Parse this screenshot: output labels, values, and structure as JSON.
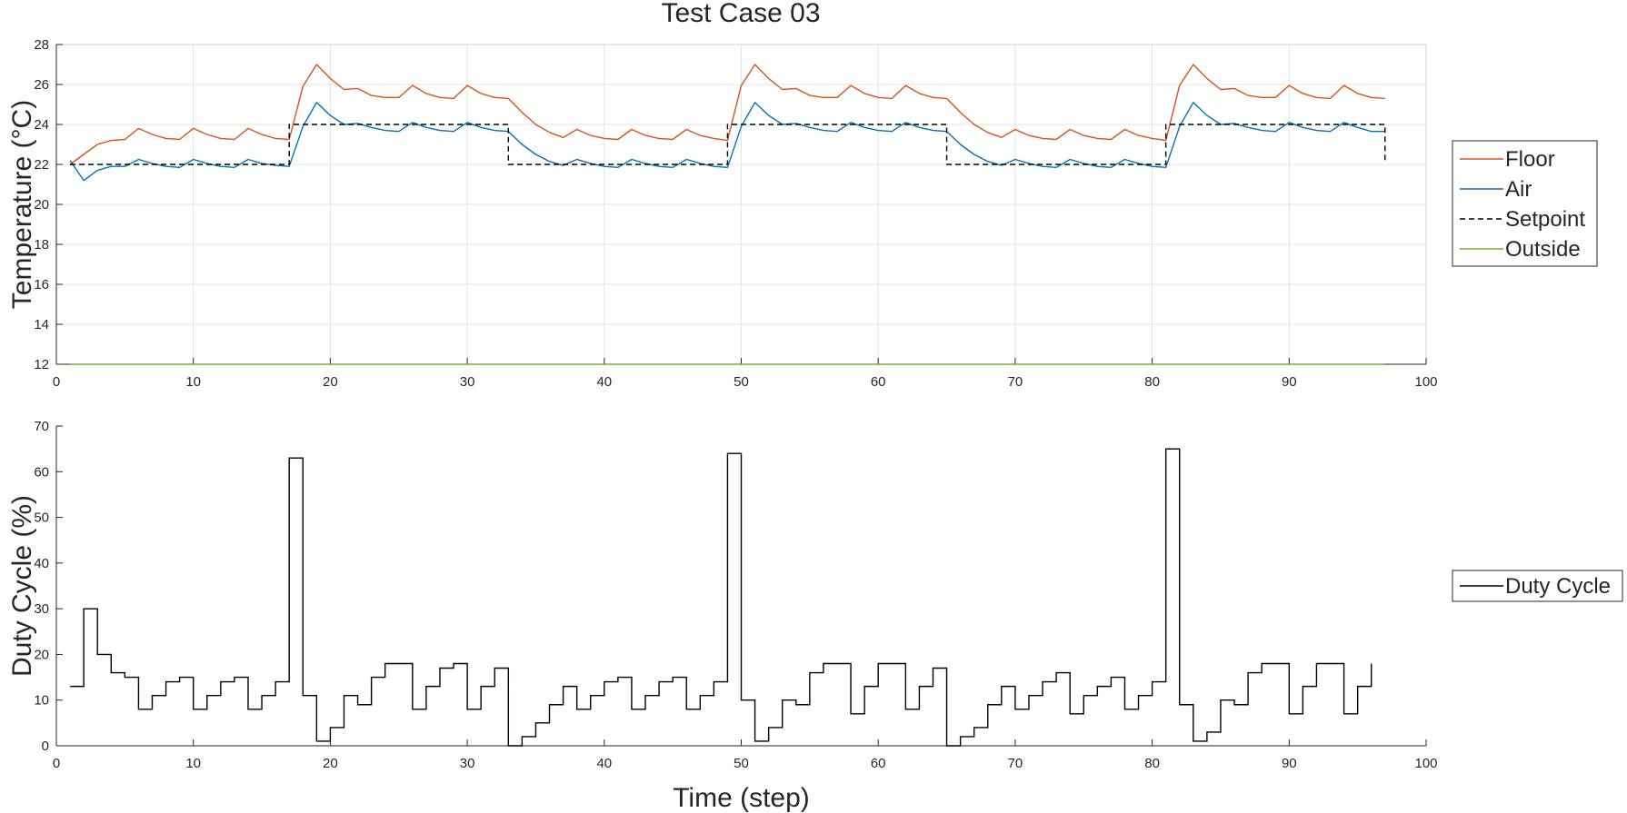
{
  "figure": {
    "title": "Test Case 03"
  },
  "colors": {
    "floor": "#d95319",
    "air": "#0072bd",
    "setpoint": "#000000",
    "outside": "#77ac30",
    "duty": "#000000",
    "grid": "#e3e3e3",
    "axis": "#262626"
  },
  "chart_data": [
    {
      "type": "line",
      "title": "Test Case 03",
      "xlabel": "",
      "ylabel": "Temperature (°C)",
      "xlim": [
        0,
        100
      ],
      "ylim": [
        12,
        28
      ],
      "xticks": [
        "0",
        "10",
        "20",
        "30",
        "40",
        "50",
        "60",
        "70",
        "80",
        "90",
        "100"
      ],
      "yticks": [
        "12",
        "14",
        "16",
        "18",
        "20",
        "22",
        "24",
        "26",
        "28"
      ],
      "grid": true,
      "legend": "outside-right",
      "series": [
        {
          "name": "Floor",
          "style": "solid",
          "x": [
            1,
            2,
            3,
            4,
            5,
            6,
            7,
            8,
            9,
            10,
            11,
            12,
            13,
            14,
            15,
            16,
            17,
            18,
            19,
            20,
            21,
            22,
            23,
            24,
            25,
            26,
            27,
            28,
            29,
            30,
            31,
            32,
            33,
            34,
            35,
            36,
            37,
            38,
            39,
            40,
            41,
            42,
            43,
            44,
            45,
            46,
            47,
            48,
            49,
            50,
            51,
            52,
            53,
            54,
            55,
            56,
            57,
            58,
            59,
            60,
            61,
            62,
            63,
            64,
            65,
            66,
            67,
            68,
            69,
            70,
            71,
            72,
            73,
            74,
            75,
            76,
            77,
            78,
            79,
            80,
            81,
            82,
            83,
            84,
            85,
            86,
            87,
            88,
            89,
            90,
            91,
            92,
            93,
            94,
            95,
            96,
            97
          ],
          "y": [
            22.0,
            22.5,
            23.0,
            23.2,
            23.25,
            23.8,
            23.5,
            23.3,
            23.25,
            23.8,
            23.5,
            23.3,
            23.25,
            23.8,
            23.5,
            23.3,
            23.25,
            25.9,
            27.0,
            26.3,
            25.75,
            25.8,
            25.45,
            25.35,
            25.35,
            25.95,
            25.55,
            25.35,
            25.3,
            25.95,
            25.55,
            25.35,
            25.3,
            24.6,
            24.0,
            23.6,
            23.35,
            23.75,
            23.45,
            23.3,
            23.25,
            23.75,
            23.45,
            23.3,
            23.25,
            23.75,
            23.45,
            23.3,
            23.2,
            25.95,
            27.0,
            26.3,
            25.75,
            25.8,
            25.45,
            25.35,
            25.35,
            25.95,
            25.55,
            25.35,
            25.3,
            25.95,
            25.55,
            25.35,
            25.3,
            24.6,
            24.0,
            23.6,
            23.35,
            23.75,
            23.45,
            23.3,
            23.25,
            23.75,
            23.45,
            23.3,
            23.25,
            23.75,
            23.45,
            23.3,
            23.2,
            25.95,
            27.0,
            26.3,
            25.75,
            25.8,
            25.45,
            25.35,
            25.35,
            25.95,
            25.55,
            25.35,
            25.3,
            25.95,
            25.55,
            25.35,
            25.3
          ]
        },
        {
          "name": "Air",
          "style": "solid",
          "x": [
            1,
            2,
            3,
            4,
            5,
            6,
            7,
            8,
            9,
            10,
            11,
            12,
            13,
            14,
            15,
            16,
            17,
            18,
            19,
            20,
            21,
            22,
            23,
            24,
            25,
            26,
            27,
            28,
            29,
            30,
            31,
            32,
            33,
            34,
            35,
            36,
            37,
            38,
            39,
            40,
            41,
            42,
            43,
            44,
            45,
            46,
            47,
            48,
            49,
            50,
            51,
            52,
            53,
            54,
            55,
            56,
            57,
            58,
            59,
            60,
            61,
            62,
            63,
            64,
            65,
            66,
            67,
            68,
            69,
            70,
            71,
            72,
            73,
            74,
            75,
            76,
            77,
            78,
            79,
            80,
            81,
            82,
            83,
            84,
            85,
            86,
            87,
            88,
            89,
            90,
            91,
            92,
            93,
            94,
            95,
            96,
            97
          ],
          "y": [
            22.2,
            21.2,
            21.7,
            21.9,
            21.9,
            22.25,
            22.05,
            21.9,
            21.85,
            22.25,
            22.05,
            21.9,
            21.85,
            22.25,
            22.05,
            21.95,
            21.9,
            23.9,
            25.1,
            24.45,
            24.0,
            24.05,
            23.85,
            23.7,
            23.65,
            24.1,
            23.85,
            23.7,
            23.65,
            24.1,
            23.85,
            23.7,
            23.65,
            23.0,
            22.5,
            22.15,
            21.95,
            22.25,
            22.05,
            21.9,
            21.85,
            22.25,
            22.05,
            21.9,
            21.85,
            22.25,
            22.05,
            21.9,
            21.85,
            23.9,
            25.1,
            24.45,
            24.0,
            24.05,
            23.85,
            23.7,
            23.65,
            24.1,
            23.85,
            23.7,
            23.65,
            24.1,
            23.85,
            23.7,
            23.65,
            23.0,
            22.5,
            22.15,
            21.95,
            22.25,
            22.05,
            21.9,
            21.85,
            22.25,
            22.05,
            21.9,
            21.85,
            22.25,
            22.05,
            21.9,
            21.85,
            23.9,
            25.1,
            24.45,
            24.0,
            24.05,
            23.85,
            23.7,
            23.65,
            24.1,
            23.85,
            23.7,
            23.65,
            24.1,
            23.85,
            23.65,
            23.65
          ]
        },
        {
          "name": "Setpoint",
          "style": "dashed",
          "x": [
            1,
            17,
            17,
            33,
            33,
            49,
            49,
            65,
            65,
            81,
            81,
            97,
            97
          ],
          "y": [
            22,
            22,
            24,
            24,
            22,
            22,
            24,
            24,
            22,
            22,
            24,
            24,
            22.2
          ]
        },
        {
          "name": "Outside",
          "style": "solid",
          "x": [
            1,
            97
          ],
          "y": [
            12,
            12
          ]
        }
      ]
    },
    {
      "type": "line",
      "title": "",
      "xlabel": "Time (step)",
      "ylabel": "Duty Cycle (%)",
      "xlim": [
        0,
        100
      ],
      "ylim": [
        0,
        70
      ],
      "xticks": [
        "0",
        "10",
        "20",
        "30",
        "40",
        "50",
        "60",
        "70",
        "80",
        "90",
        "100"
      ],
      "yticks": [
        "0",
        "10",
        "20",
        "30",
        "40",
        "50",
        "60",
        "70"
      ],
      "grid": false,
      "legend": "outside-right",
      "series": [
        {
          "name": "Duty Cycle",
          "style": "stairs",
          "x": [
            1,
            2,
            3,
            4,
            5,
            6,
            7,
            8,
            9,
            10,
            11,
            12,
            13,
            14,
            15,
            16,
            17,
            18,
            19,
            20,
            21,
            22,
            23,
            24,
            25,
            26,
            27,
            28,
            29,
            30,
            31,
            32,
            33,
            34,
            35,
            36,
            37,
            38,
            39,
            40,
            41,
            42,
            43,
            44,
            45,
            46,
            47,
            48,
            49,
            50,
            51,
            52,
            53,
            54,
            55,
            56,
            57,
            58,
            59,
            60,
            61,
            62,
            63,
            64,
            65,
            66,
            67,
            68,
            69,
            70,
            71,
            72,
            73,
            74,
            75,
            76,
            77,
            78,
            79,
            80,
            81,
            82,
            83,
            84,
            85,
            86,
            87,
            88,
            89,
            90,
            91,
            92,
            93,
            94,
            95,
            96
          ],
          "y": [
            13,
            30,
            20,
            16,
            15,
            8,
            11,
            14,
            15,
            8,
            11,
            14,
            15,
            8,
            11,
            14,
            63,
            11,
            1,
            4,
            11,
            9,
            15,
            18,
            18,
            8,
            13,
            17,
            18,
            8,
            13,
            17,
            0,
            2,
            5,
            9,
            13,
            8,
            11,
            14,
            15,
            8,
            11,
            14,
            15,
            8,
            11,
            14,
            64,
            10,
            1,
            4,
            10,
            9,
            16,
            18,
            18,
            7,
            13,
            18,
            18,
            8,
            13,
            17,
            0,
            2,
            4,
            9,
            13,
            8,
            11,
            14,
            16,
            7,
            11,
            13,
            15,
            8,
            11,
            14,
            65,
            9,
            1,
            3,
            10,
            9,
            16,
            18,
            18,
            7,
            13,
            18,
            18,
            7,
            13,
            18
          ]
        }
      ]
    }
  ]
}
